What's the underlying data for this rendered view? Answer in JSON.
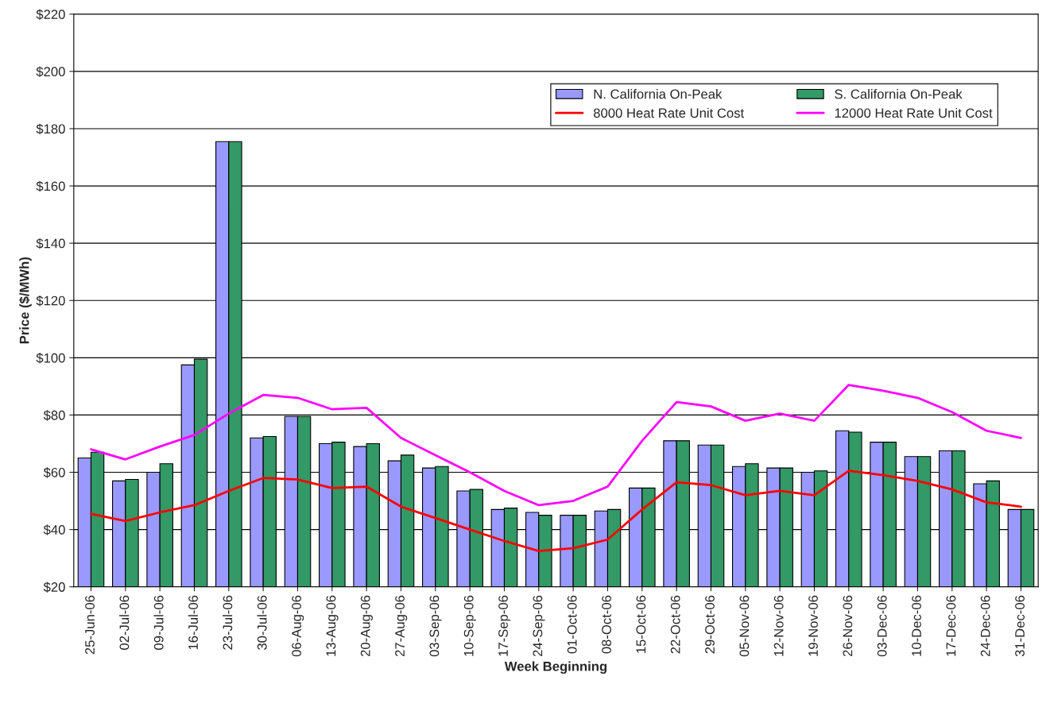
{
  "chart_data": {
    "type": "bar",
    "xlabel": "Week Beginning",
    "ylabel": "Price ($/MWh)",
    "categories": [
      "25-Jun-06",
      "02-Jul-06",
      "09-Jul-06",
      "16-Jul-06",
      "23-Jul-06",
      "30-Jul-06",
      "06-Aug-06",
      "13-Aug-06",
      "20-Aug-06",
      "27-Aug-06",
      "03-Sep-06",
      "10-Sep-06",
      "17-Sep-06",
      "24-Sep-06",
      "01-Oct-06",
      "08-Oct-06",
      "15-Oct-06",
      "22-Oct-06",
      "29-Oct-06",
      "05-Nov-06",
      "12-Nov-06",
      "19-Nov-06",
      "26-Nov-06",
      "03-Dec-06",
      "10-Dec-06",
      "17-Dec-06",
      "24-Dec-06",
      "31-Dec-06"
    ],
    "series": [
      {
        "name": "N. California On-Peak",
        "color": "#9999ff",
        "values": [
          65,
          57,
          60,
          97.5,
          175.5,
          72,
          79.5,
          70,
          69,
          64,
          61.5,
          53.5,
          47,
          46,
          45,
          46.5,
          54.5,
          71,
          69.5,
          62,
          61.5,
          60,
          74.5,
          70.5,
          65.5,
          67.5,
          56,
          47
        ]
      },
      {
        "name": "S. California On-Peak",
        "color": "#339966",
        "values": [
          67,
          57.5,
          63,
          99.5,
          175.5,
          72.5,
          79.5,
          70.5,
          70,
          66,
          62,
          54,
          47.5,
          45,
          45,
          47,
          54.5,
          71,
          69.5,
          63,
          61.5,
          60.5,
          74,
          70.5,
          65.5,
          67.5,
          57,
          47
        ]
      },
      {
        "name": "8000 Heat Rate Unit Cost",
        "type": "line",
        "color": "#ff0000",
        "values": [
          45.5,
          43,
          46,
          48.5,
          53.5,
          58,
          57.5,
          54.5,
          55,
          48,
          44,
          40,
          36,
          32.5,
          33.5,
          36.5,
          47,
          56.5,
          55.5,
          52,
          53.5,
          52,
          60.5,
          59,
          57,
          54,
          49.5,
          48
        ]
      },
      {
        "name": "12000 Heat Rate Unit Cost",
        "type": "line",
        "color": "#ff00ff",
        "values": [
          68,
          64.5,
          69,
          73,
          80.5,
          87,
          86,
          82,
          82.5,
          72,
          66,
          60,
          53.5,
          48.5,
          50,
          55,
          71,
          84.5,
          83,
          78,
          80.5,
          78,
          90.5,
          88.5,
          86,
          81,
          74.5,
          72
        ]
      }
    ],
    "ylim": [
      20,
      220
    ],
    "yticks": [
      {
        "value": 20,
        "label": "$20"
      },
      {
        "value": 40,
        "label": "$40"
      },
      {
        "value": 60,
        "label": "$60"
      },
      {
        "value": 80,
        "label": "$80"
      },
      {
        "value": 100,
        "label": "$100"
      },
      {
        "value": 120,
        "label": "$120"
      },
      {
        "value": 140,
        "label": "$140"
      },
      {
        "value": 160,
        "label": "$160"
      },
      {
        "value": 180,
        "label": "$180"
      },
      {
        "value": 200,
        "label": "$200"
      },
      {
        "value": 220,
        "label": "$220"
      }
    ],
    "grid": "y",
    "legend": "upper right",
    "marker": "none",
    "line_style": "solid"
  }
}
